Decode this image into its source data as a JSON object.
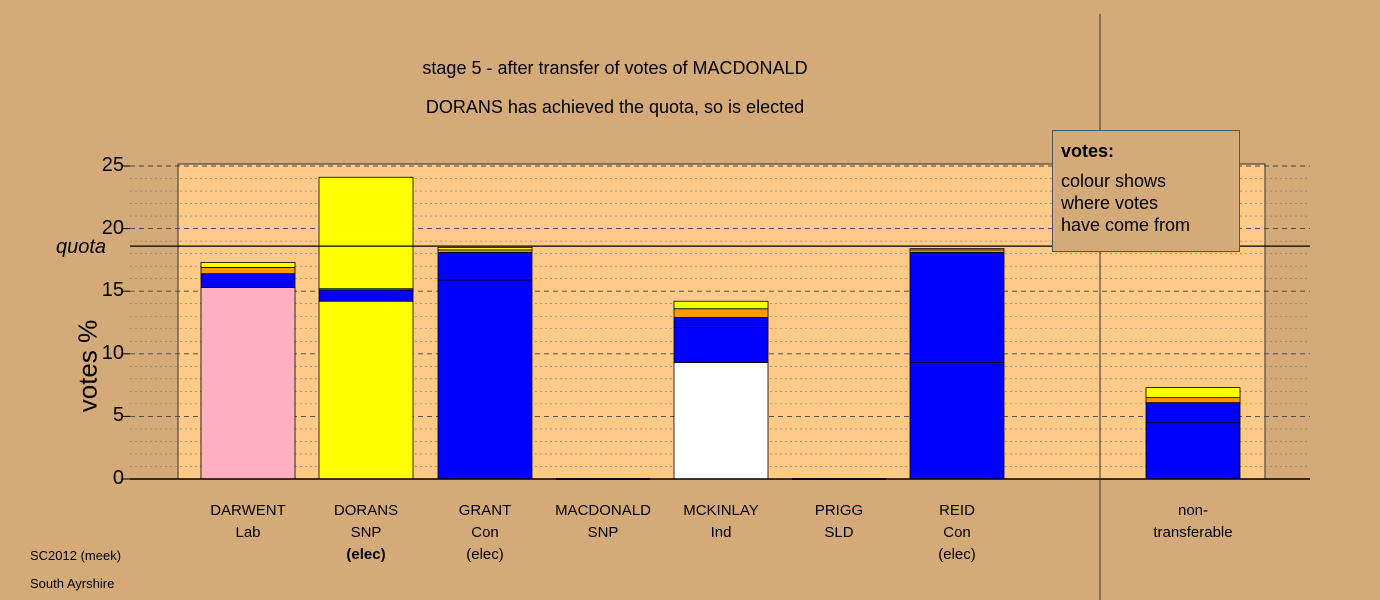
{
  "title_line1": "stage 5 - after transfer of votes of MACDONALD",
  "title_line2": "DORANS has achieved the quota, so is elected",
  "ylabel": "votes %",
  "quota_label": "quota",
  "legend": {
    "heading": "votes:",
    "body": [
      "colour shows",
      "where votes",
      "have come from"
    ]
  },
  "footer": [
    "SC2012 (meek)",
    "South Ayrshire"
  ],
  "colors": {
    "background": "#D4AA78",
    "plot_area": "#FFC987",
    "Lab": "#FFB0C0",
    "SNP": "#FFFF00",
    "Con": "#0000FF",
    "Ind": "#FFFFFF",
    "transfer_orange": "#FF9900"
  },
  "chart_data": {
    "type": "bar",
    "stacked": true,
    "ylabel": "votes %",
    "ylim": [
      0,
      25
    ],
    "yticks": [
      0,
      5,
      10,
      15,
      20,
      25
    ],
    "quota": 18.6,
    "grid": "dashed horizontal",
    "categories": [
      {
        "name": "DARWENT",
        "party": "Lab",
        "note": "",
        "note_bold": false
      },
      {
        "name": "DORANS",
        "party": "SNP",
        "note": "(elec)",
        "note_bold": true
      },
      {
        "name": "GRANT",
        "party": "Con",
        "note": "(elec)",
        "note_bold": false
      },
      {
        "name": "MACDONALD",
        "party": "SNP",
        "note": "",
        "note_bold": false
      },
      {
        "name": "MCKINLAY",
        "party": "Ind",
        "note": "",
        "note_bold": false
      },
      {
        "name": "PRIGG",
        "party": "SLD",
        "note": "",
        "note_bold": false
      },
      {
        "name": "REID",
        "party": "Con",
        "note": "(elec)",
        "note_bold": false
      },
      {
        "name": "non-",
        "party": "transferable",
        "note": "",
        "note_bold": false
      }
    ],
    "stacks": [
      [
        {
          "color": "#FFB0C0",
          "value": 15.3
        },
        {
          "color": "#0000FF",
          "value": 1.1
        },
        {
          "color": "#FF9900",
          "value": 0.5
        },
        {
          "color": "#FFFF00",
          "value": 0.4
        }
      ],
      [
        {
          "color": "#FFFF00",
          "value": 14.2
        },
        {
          "color": "#0000FF",
          "value": 0.9
        },
        {
          "color": "#FF9900",
          "value": 0.1
        },
        {
          "color": "#FFFF00",
          "value": 8.9
        }
      ],
      [
        {
          "color": "#0000FF",
          "value": 15.9
        },
        {
          "color": "#0000FF",
          "value": 2.2
        },
        {
          "color": "#FF9900",
          "value": 0.2
        },
        {
          "color": "#FFFF00",
          "value": 0.2
        }
      ],
      [],
      [
        {
          "color": "#FFFFFF",
          "value": 9.3
        },
        {
          "color": "#0000FF",
          "value": 2.8
        },
        {
          "color": "#0000FF",
          "value": 0.8
        },
        {
          "color": "#FF9900",
          "value": 0.7
        },
        {
          "color": "#FFFF00",
          "value": 0.6
        }
      ],
      [],
      [
        {
          "color": "#0000FF",
          "value": 9.3
        },
        {
          "color": "#0000FF",
          "value": 8.8
        },
        {
          "color": "#FF9900",
          "value": 0.2
        },
        {
          "color": "#FFFF00",
          "value": 0.1
        }
      ],
      [
        {
          "color": "#0000FF",
          "value": 4.5
        },
        {
          "color": "#0000FF",
          "value": 1.6
        },
        {
          "color": "#FF9900",
          "value": 0.4
        },
        {
          "color": "#FFFF00",
          "value": 0.8
        }
      ]
    ]
  }
}
